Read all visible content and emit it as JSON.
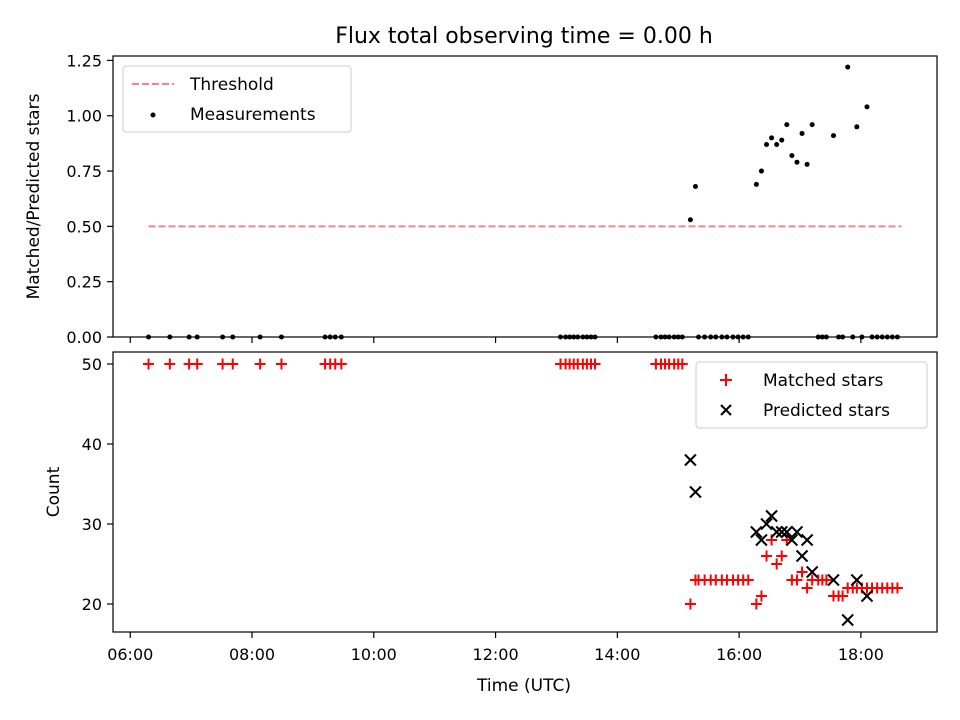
{
  "chart_data": [
    {
      "type": "scatter",
      "title": "Flux total observing time = 0.00 h",
      "ylabel": "Matched/Predicted stars",
      "xlabel": "",
      "xlim": [
        "05:43",
        "19:15"
      ],
      "ylim": [
        0,
        1.27
      ],
      "yticks": [
        0,
        0.25,
        0.5,
        0.75,
        1.0,
        1.25
      ],
      "yticklabels": [
        "0.00",
        "0.25",
        "0.50",
        "0.75",
        "1.00",
        "1.25"
      ],
      "legend_position": "top-left",
      "series": [
        {
          "name": "Threshold",
          "style": "dashed-line",
          "color": "#ff7f7f",
          "points": [
            [
              "06:18",
              0.5
            ],
            [
              "18:40",
              0.5
            ]
          ]
        },
        {
          "name": "Measurements",
          "style": "dot",
          "color": "#000000",
          "points": [
            [
              "06:18",
              0
            ],
            [
              "06:39",
              0
            ],
            [
              "06:58",
              0
            ],
            [
              "07:06",
              0
            ],
            [
              "07:31",
              0
            ],
            [
              "07:41",
              0
            ],
            [
              "08:08",
              0
            ],
            [
              "08:29",
              0
            ],
            [
              "09:12",
              0
            ],
            [
              "09:17",
              0
            ],
            [
              "09:22",
              0
            ],
            [
              "09:28",
              0
            ],
            [
              "13:04",
              0
            ],
            [
              "13:09",
              0
            ],
            [
              "13:13",
              0
            ],
            [
              "13:17",
              0
            ],
            [
              "13:21",
              0
            ],
            [
              "13:26",
              0
            ],
            [
              "13:30",
              0
            ],
            [
              "13:34",
              0
            ],
            [
              "13:38",
              0
            ],
            [
              "14:38",
              0
            ],
            [
              "14:43",
              0
            ],
            [
              "14:47",
              0
            ],
            [
              "14:51",
              0
            ],
            [
              "14:56",
              0
            ],
            [
              "15:00",
              0
            ],
            [
              "15:04",
              0
            ],
            [
              "15:12",
              0.53
            ],
            [
              "15:17",
              0.68
            ],
            [
              "15:20",
              0
            ],
            [
              "15:26",
              0
            ],
            [
              "15:32",
              0
            ],
            [
              "15:37",
              0
            ],
            [
              "15:43",
              0
            ],
            [
              "15:48",
              0
            ],
            [
              "15:54",
              0
            ],
            [
              "15:59",
              0
            ],
            [
              "16:04",
              0
            ],
            [
              "16:09",
              0
            ],
            [
              "16:17",
              0.69
            ],
            [
              "16:22",
              0.75
            ],
            [
              "16:27",
              0.87
            ],
            [
              "16:32",
              0.9
            ],
            [
              "16:37",
              0.87
            ],
            [
              "16:42",
              0.89
            ],
            [
              "16:47",
              0.96
            ],
            [
              "16:52",
              0.82
            ],
            [
              "16:57",
              0.79
            ],
            [
              "17:02",
              0.92
            ],
            [
              "17:07",
              0.78
            ],
            [
              "17:12",
              0.96
            ],
            [
              "17:18",
              0
            ],
            [
              "17:22",
              0
            ],
            [
              "17:26",
              0
            ],
            [
              "17:33",
              0.91
            ],
            [
              "17:38",
              0
            ],
            [
              "17:42",
              0
            ],
            [
              "17:47",
              1.22
            ],
            [
              "17:52",
              0
            ],
            [
              "17:56",
              0.95
            ],
            [
              "18:01",
              0
            ],
            [
              "18:06",
              1.04
            ],
            [
              "18:11",
              0
            ],
            [
              "18:16",
              0
            ],
            [
              "18:21",
              0
            ],
            [
              "18:26",
              0
            ],
            [
              "18:31",
              0
            ],
            [
              "18:36",
              0
            ]
          ]
        }
      ]
    },
    {
      "type": "scatter",
      "title": "",
      "ylabel": "Count",
      "xlabel": "Time (UTC)",
      "xlim": [
        "05:43",
        "19:15"
      ],
      "ylim": [
        16.5,
        51.5
      ],
      "yticks": [
        20,
        30,
        40,
        50
      ],
      "yticklabels": [
        "20",
        "30",
        "40",
        "50"
      ],
      "xticks": [
        "06:00",
        "08:00",
        "10:00",
        "12:00",
        "14:00",
        "16:00",
        "18:00"
      ],
      "legend_position": "top-right",
      "series": [
        {
          "name": "Matched stars",
          "marker": "plus",
          "color": "#ff0000",
          "points": [
            [
              "06:18",
              50
            ],
            [
              "06:39",
              50
            ],
            [
              "06:58",
              50
            ],
            [
              "07:06",
              50
            ],
            [
              "07:31",
              50
            ],
            [
              "07:41",
              50
            ],
            [
              "08:08",
              50
            ],
            [
              "08:29",
              50
            ],
            [
              "09:12",
              50
            ],
            [
              "09:17",
              50
            ],
            [
              "09:22",
              50
            ],
            [
              "09:28",
              50
            ],
            [
              "13:04",
              50
            ],
            [
              "13:09",
              50
            ],
            [
              "13:13",
              50
            ],
            [
              "13:17",
              50
            ],
            [
              "13:21",
              50
            ],
            [
              "13:26",
              50
            ],
            [
              "13:30",
              50
            ],
            [
              "13:34",
              50
            ],
            [
              "13:38",
              50
            ],
            [
              "14:38",
              50
            ],
            [
              "14:43",
              50
            ],
            [
              "14:47",
              50
            ],
            [
              "14:51",
              50
            ],
            [
              "14:56",
              50
            ],
            [
              "15:00",
              50
            ],
            [
              "15:04",
              50
            ],
            [
              "15:12",
              20
            ],
            [
              "15:17",
              23
            ],
            [
              "15:20",
              23
            ],
            [
              "15:26",
              23
            ],
            [
              "15:32",
              23
            ],
            [
              "15:37",
              23
            ],
            [
              "15:43",
              23
            ],
            [
              "15:48",
              23
            ],
            [
              "15:54",
              23
            ],
            [
              "15:59",
              23
            ],
            [
              "16:04",
              23
            ],
            [
              "16:09",
              23
            ],
            [
              "16:17",
              20
            ],
            [
              "16:22",
              21
            ],
            [
              "16:27",
              26
            ],
            [
              "16:32",
              28
            ],
            [
              "16:37",
              25
            ],
            [
              "16:42",
              26
            ],
            [
              "16:47",
              28
            ],
            [
              "16:52",
              23
            ],
            [
              "16:57",
              23
            ],
            [
              "17:02",
              24
            ],
            [
              "17:07",
              22
            ],
            [
              "17:12",
              23
            ],
            [
              "17:18",
              23
            ],
            [
              "17:22",
              23
            ],
            [
              "17:26",
              23
            ],
            [
              "17:33",
              21
            ],
            [
              "17:38",
              21
            ],
            [
              "17:42",
              21
            ],
            [
              "17:47",
              22
            ],
            [
              "17:52",
              22
            ],
            [
              "17:56",
              22
            ],
            [
              "18:01",
              22
            ],
            [
              "18:06",
              22
            ],
            [
              "18:11",
              22
            ],
            [
              "18:16",
              22
            ],
            [
              "18:21",
              22
            ],
            [
              "18:26",
              22
            ],
            [
              "18:31",
              22
            ],
            [
              "18:36",
              22
            ]
          ]
        },
        {
          "name": "Predicted stars",
          "marker": "x",
          "color": "#000000",
          "points": [
            [
              "15:12",
              38
            ],
            [
              "15:17",
              34
            ],
            [
              "16:17",
              29
            ],
            [
              "16:22",
              28
            ],
            [
              "16:27",
              30
            ],
            [
              "16:32",
              31
            ],
            [
              "16:37",
              29
            ],
            [
              "16:42",
              29
            ],
            [
              "16:47",
              29
            ],
            [
              "16:52",
              28
            ],
            [
              "16:57",
              29
            ],
            [
              "17:02",
              26
            ],
            [
              "17:07",
              28
            ],
            [
              "17:12",
              24
            ],
            [
              "17:33",
              23
            ],
            [
              "17:47",
              18
            ],
            [
              "17:56",
              23
            ],
            [
              "18:06",
              21
            ]
          ]
        }
      ]
    }
  ]
}
